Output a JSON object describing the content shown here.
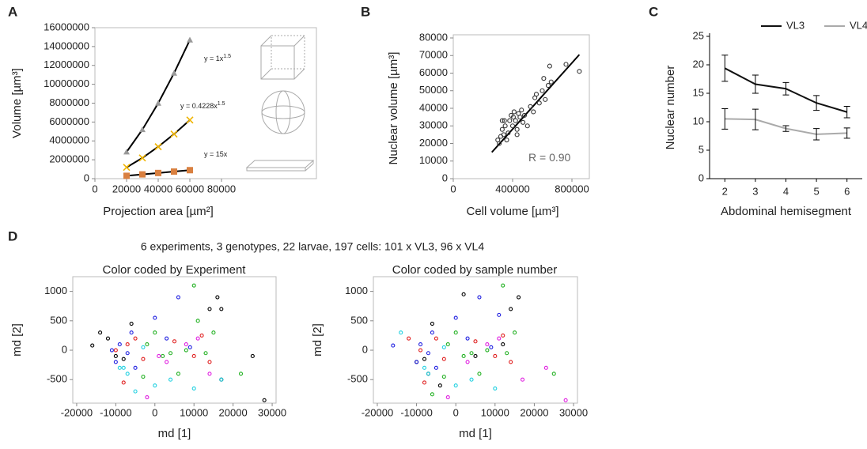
{
  "figure": {
    "panel_labels": [
      "A",
      "B",
      "C",
      "D"
    ],
    "d_heading": "6 experiments, 3 genotypes, 22 larvae, 197 cells: 101 x VL3, 96 x VL4"
  },
  "chart_data": [
    {
      "type": "scatter",
      "xlabel": "Projection area [µm²]",
      "ylabel": "Volume [µm³]",
      "xlim": [
        0,
        80000
      ],
      "xticks": [
        0,
        20000,
        40000,
        60000,
        80000
      ],
      "ylim": [
        0,
        16000000
      ],
      "yticks": [
        0,
        2000000,
        4000000,
        6000000,
        8000000,
        10000000,
        12000000,
        14000000,
        16000000
      ],
      "series": [
        {
          "color": "#999999",
          "marker": "triangle",
          "line_color": "#000000",
          "x": [
            20000,
            30000,
            40000,
            50000,
            60000
          ],
          "values": [
            2828427,
            5196152,
            8000000,
            11180340,
            14696938
          ]
        },
        {
          "color": "#f0b400",
          "marker": "x",
          "line_color": "#000000",
          "x": [
            20000,
            30000,
            40000,
            50000,
            60000
          ],
          "values": [
            1195858,
            2196933,
            3382400,
            4727048,
            6213865
          ]
        },
        {
          "color": "#d98040",
          "marker": "square",
          "line_color": "#000000",
          "x": [
            20000,
            30000,
            40000,
            50000,
            60000
          ],
          "values": [
            300000,
            450000,
            600000,
            750000,
            900000
          ]
        }
      ],
      "annotations": [
        {
          "text": "y = 1x",
          "sup": "1.5"
        },
        {
          "text": "y = 0.4228x",
          "sup": "1.5"
        },
        {
          "text": "y = 15x"
        }
      ]
    },
    {
      "type": "scatter",
      "xlabel": "Cell volume [µm³]",
      "ylabel": "Nuclear volume [µm³]",
      "xlim": [
        0,
        800000
      ],
      "xticks": [
        0,
        400000,
        800000
      ],
      "ylim": [
        0,
        80000
      ],
      "yticks": [
        0,
        10000,
        20000,
        30000,
        40000,
        50000,
        60000,
        70000,
        80000
      ],
      "series": [
        {
          "color": "#333333",
          "marker": "circle",
          "x": [
            300000,
            310000,
            320000,
            330000,
            340000,
            345000,
            350000,
            360000,
            370000,
            380000,
            390000,
            400000,
            405000,
            410000,
            420000,
            430000,
            440000,
            450000,
            460000,
            470000,
            480000,
            500000,
            520000,
            540000,
            550000,
            560000,
            580000,
            600000,
            610000,
            620000,
            640000,
            650000,
            660000,
            760000,
            850000,
            330000,
            430000
          ],
          "values": [
            22000,
            20000,
            24000,
            28000,
            25000,
            33000,
            30000,
            22000,
            26000,
            33000,
            36000,
            30000,
            35000,
            38000,
            33000,
            28000,
            37000,
            35000,
            39000,
            32000,
            36000,
            30000,
            41000,
            38000,
            46000,
            48000,
            43000,
            50000,
            57000,
            45000,
            53000,
            64000,
            55000,
            65000,
            61000,
            33000,
            25000
          ]
        }
      ],
      "fit": {
        "x": [
          260000,
          850000
        ],
        "values": [
          15000,
          70500
        ]
      },
      "annotations": [
        {
          "text": "R = 0.90"
        }
      ]
    },
    {
      "type": "line",
      "xlabel": "Abdominal hemisegment",
      "ylabel": "Nuclear number",
      "xlim": [
        1.5,
        6.5
      ],
      "xticks": [
        2,
        3,
        4,
        5,
        6
      ],
      "ylim": [
        0,
        25
      ],
      "yticks": [
        0,
        5,
        10,
        15,
        20,
        25
      ],
      "series": [
        {
          "name": "VL3",
          "color": "#111111",
          "x": [
            2,
            3,
            4,
            5,
            6
          ],
          "values": [
            19.4,
            16.6,
            15.8,
            13.3,
            11.7
          ],
          "errors": [
            2.3,
            1.6,
            1.1,
            1.3,
            1.0
          ]
        },
        {
          "name": "VL4",
          "color": "#aaaaaa",
          "x": [
            2,
            3,
            4,
            5,
            6
          ],
          "values": [
            10.5,
            10.4,
            8.8,
            7.8,
            8.0
          ],
          "errors": [
            1.8,
            1.8,
            0.5,
            1.0,
            0.9
          ]
        }
      ]
    },
    {
      "type": "scatter",
      "title": "Color coded by Experiment",
      "xlabel": "md [1]",
      "ylabel": "md [2]",
      "xlim": [
        -21000,
        31000
      ],
      "xticks": [
        -20000,
        -10000,
        0,
        10000,
        20000,
        30000
      ],
      "ylim": [
        -900,
        1250
      ],
      "yticks": [
        -500,
        0,
        500,
        1000
      ],
      "series": [
        {
          "color": "#000000",
          "marker": "circle",
          "x": [
            -16000,
            -14000,
            -12000,
            -10000,
            -8000,
            -6000,
            14000,
            16000,
            17000,
            25000,
            28000,
            17000
          ],
          "values": [
            80,
            300,
            200,
            -100,
            -150,
            450,
            700,
            900,
            700,
            -100,
            -850,
            -500
          ]
        },
        {
          "color": "#e02020",
          "marker": "circle",
          "x": [
            -8000,
            -5000,
            -3000,
            -7000,
            5000,
            10000,
            14000,
            -10000,
            12000
          ],
          "values": [
            -550,
            200,
            -150,
            100,
            150,
            -100,
            -200,
            0,
            250
          ]
        },
        {
          "color": "#2020e0",
          "marker": "circle",
          "x": [
            -9000,
            -7000,
            -10000,
            -6000,
            0,
            6000,
            3000,
            -11000,
            9000,
            -5000
          ],
          "values": [
            100,
            -50,
            -200,
            300,
            550,
            900,
            200,
            0,
            50,
            -300
          ]
        },
        {
          "color": "#20b020",
          "marker": "circle",
          "x": [
            -2000,
            0,
            4000,
            8000,
            10000,
            11000,
            13000,
            -3000,
            6000,
            15000,
            22000,
            2000
          ],
          "values": [
            100,
            300,
            -50,
            0,
            1100,
            500,
            -50,
            -450,
            -400,
            300,
            -400,
            -100
          ]
        },
        {
          "color": "#20d0e0",
          "marker": "circle",
          "x": [
            -8000,
            -7000,
            -5000,
            0,
            4000,
            -3000,
            17000,
            10000,
            -9000
          ],
          "values": [
            -300,
            -400,
            -700,
            -600,
            -500,
            50,
            -500,
            -650,
            -300
          ]
        },
        {
          "color": "#e020e0",
          "marker": "circle",
          "x": [
            -2000,
            3000,
            11000,
            1000,
            8000,
            14000
          ],
          "values": [
            -800,
            -200,
            200,
            -100,
            100,
            -400
          ]
        }
      ]
    },
    {
      "type": "scatter",
      "title": "Color coded by sample number",
      "xlabel": "md [1]",
      "ylabel": "md [2]",
      "xlim": [
        -21000,
        31000
      ],
      "xticks": [
        -20000,
        -10000,
        0,
        10000,
        20000,
        30000
      ],
      "ylim": [
        -900,
        1250
      ],
      "yticks": [
        -500,
        0,
        500,
        1000
      ],
      "series": [
        {
          "color": "#000000",
          "marker": "circle",
          "x": [
            -10000,
            -8000,
            -6000,
            14000,
            16000,
            2000,
            5000,
            -4000,
            12000,
            -7000
          ],
          "values": [
            -200,
            -150,
            450,
            700,
            900,
            950,
            -100,
            -600,
            100,
            -400
          ]
        },
        {
          "color": "#e02020",
          "marker": "circle",
          "x": [
            -12000,
            -8000,
            -5000,
            -3000,
            5000,
            10000,
            14000,
            12000,
            -9000
          ],
          "values": [
            200,
            -550,
            200,
            -150,
            150,
            -100,
            -200,
            250,
            0
          ]
        },
        {
          "color": "#2020e0",
          "marker": "circle",
          "x": [
            -16000,
            -9000,
            -7000,
            -10000,
            -6000,
            0,
            6000,
            3000,
            9000,
            -5000,
            11000
          ],
          "values": [
            80,
            100,
            -50,
            -200,
            300,
            550,
            900,
            200,
            50,
            -300,
            600
          ]
        },
        {
          "color": "#20b020",
          "marker": "circle",
          "x": [
            -2000,
            0,
            4000,
            8000,
            12000,
            13000,
            -3000,
            6000,
            15000,
            25000,
            2000,
            -6000
          ],
          "values": [
            100,
            300,
            -50,
            0,
            1100,
            -50,
            -450,
            -400,
            300,
            -400,
            -100,
            -750
          ]
        },
        {
          "color": "#20d0e0",
          "marker": "circle",
          "x": [
            -14000,
            -8000,
            -7000,
            0,
            4000,
            -3000,
            10000
          ],
          "values": [
            300,
            -300,
            -400,
            -600,
            -500,
            50,
            -650
          ]
        },
        {
          "color": "#e020e0",
          "marker": "circle",
          "x": [
            -2000,
            3000,
            11000,
            8000,
            23000,
            28000,
            17000
          ],
          "values": [
            -800,
            -200,
            200,
            100,
            -300,
            -850,
            -500
          ]
        }
      ]
    }
  ]
}
